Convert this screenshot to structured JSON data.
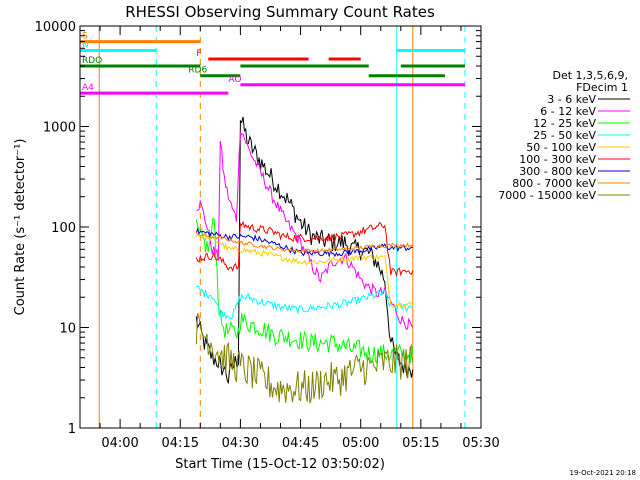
{
  "chart_data": {
    "type": "line",
    "title": "RHESSI Observing Summary Count Rates",
    "xlabel": "Start Time (15-Oct-12 03:50:02)",
    "ylabel": "Count Rate (s⁻¹ detector⁻¹)",
    "footer": "19-Oct-2021 20:18",
    "yscale": "log",
    "ylim": [
      1,
      10000
    ],
    "xlim_min": [
      0,
      100
    ],
    "x_origin": "03:50",
    "y_ticks": [
      {
        "v": 1,
        "label": "1"
      },
      {
        "v": 10,
        "label": "10"
      },
      {
        "v": 100,
        "label": "100"
      },
      {
        "v": 1000,
        "label": "1000"
      },
      {
        "v": 10000,
        "label": "10000"
      }
    ],
    "x_ticks": [
      {
        "v": 10,
        "label": "04:00"
      },
      {
        "v": 25,
        "label": "04:15"
      },
      {
        "v": 40,
        "label": "04:30"
      },
      {
        "v": 55,
        "label": "04:45"
      },
      {
        "v": 70,
        "label": "05:00"
      },
      {
        "v": 85,
        "label": "05:15"
      },
      {
        "v": 100,
        "label": "05:30"
      }
    ],
    "legend": {
      "header": [
        "Det 1,3,5,6,9,",
        "FDecim 1"
      ],
      "placement": "right"
    },
    "series": [
      {
        "name": "3 - 6 keV",
        "color": "#000000",
        "noise": 0.1,
        "x": [
          29,
          31,
          33,
          34.8,
          35,
          36.5,
          37,
          38,
          39.5,
          40,
          42,
          45,
          48,
          52,
          55,
          58,
          60,
          63,
          66,
          68,
          70,
          72,
          74,
          76,
          77.5,
          79,
          81,
          83
        ],
        "y": [
          12,
          7,
          5,
          4.5,
          4.2,
          3.5,
          3,
          4,
          5,
          1200,
          700,
          450,
          300,
          180,
          110,
          80,
          75,
          70,
          70,
          60,
          60,
          55,
          45,
          30,
          7,
          5,
          4,
          3.8
        ]
      },
      {
        "name": "6 - 12 keV",
        "color": "#ff00ff",
        "noise": 0.06,
        "x": [
          29,
          30,
          31.5,
          33,
          34.5,
          35,
          36,
          37,
          38,
          39,
          40,
          42,
          45,
          48,
          51,
          55,
          58,
          60,
          63,
          66,
          68,
          70,
          72,
          74,
          76,
          77.5,
          80,
          83
        ],
        "y": [
          160,
          170,
          110,
          60,
          50,
          700,
          300,
          200,
          150,
          120,
          1000,
          600,
          350,
          200,
          120,
          70,
          40,
          30,
          45,
          50,
          40,
          30,
          25,
          22,
          22,
          18,
          12,
          10
        ]
      },
      {
        "name": "12 - 25 keV",
        "color": "#00ff00",
        "noise": 0.1,
        "x": [
          29,
          30,
          32,
          33.5,
          34.5,
          35,
          36.5,
          38,
          39.5,
          40,
          42,
          45,
          48,
          52,
          55,
          58,
          61,
          63,
          66,
          68,
          70,
          72,
          74,
          76,
          77.5,
          80,
          83
        ],
        "y": [
          95,
          80,
          60,
          120,
          20,
          12,
          9,
          9,
          9,
          12,
          11,
          10,
          8.5,
          8,
          7.5,
          7,
          7,
          7,
          6.5,
          6,
          6,
          5.5,
          5.5,
          5.5,
          5.5,
          5.5,
          5.5
        ]
      },
      {
        "name": "25 - 50 keV",
        "color": "#00ffff",
        "noise": 0.04,
        "x": [
          29,
          31,
          33,
          35,
          38,
          40,
          42,
          45,
          50,
          55,
          60,
          65,
          68,
          70,
          72,
          74,
          76,
          77.5,
          80,
          83
        ],
        "y": [
          25,
          22,
          21,
          14,
          13,
          20,
          20,
          18,
          16,
          15,
          16,
          17,
          18,
          19,
          20,
          21,
          22,
          16,
          16,
          16
        ]
      },
      {
        "name": "50 - 100 keV",
        "color": "#ffcc00",
        "noise": 0.03,
        "x": [
          29,
          31,
          33,
          35,
          37,
          40,
          42,
          45,
          50,
          55,
          60,
          65,
          70,
          73,
          76,
          77.5,
          80,
          83
        ],
        "y": [
          85,
          80,
          75,
          70,
          60,
          60,
          58,
          55,
          50,
          45,
          45,
          48,
          50,
          50,
          50,
          17,
          17,
          17
        ]
      },
      {
        "name": "100 - 300 keV",
        "color": "#ff0000",
        "noise": 0.04,
        "x": [
          29,
          31,
          33,
          35,
          37,
          39.5,
          40,
          42,
          45,
          48,
          51,
          55,
          60,
          65,
          68,
          70,
          72,
          74,
          76,
          77.5,
          80,
          83
        ],
        "y": [
          48,
          50,
          52,
          47,
          40,
          40,
          110,
          100,
          95,
          90,
          80,
          78,
          78,
          80,
          85,
          90,
          95,
          100,
          105,
          35,
          36,
          37
        ]
      },
      {
        "name": "300 - 800 keV",
        "color": "#0000cc",
        "noise": 0.03,
        "x": [
          29,
          31,
          33,
          35,
          37,
          40,
          42,
          45,
          50,
          55,
          60,
          65,
          70,
          72,
          74,
          76,
          77.5,
          80,
          83
        ],
        "y": [
          90,
          88,
          85,
          82,
          80,
          80,
          80,
          75,
          65,
          55,
          55,
          55,
          58,
          60,
          62,
          65,
          62,
          62,
          62
        ]
      },
      {
        "name": "800 - 7000 keV",
        "color": "#ff7f00",
        "noise": 0.02,
        "x": [
          29,
          31,
          33,
          35,
          37,
          40,
          42,
          45,
          50,
          55,
          60,
          65,
          70,
          74,
          76,
          77.5,
          80,
          83
        ],
        "y": [
          85,
          82,
          80,
          78,
          75,
          70,
          68,
          65,
          60,
          58,
          58,
          60,
          62,
          65,
          65,
          66,
          66,
          66
        ]
      },
      {
        "name": "7000 - 15000 keV",
        "color": "#808000",
        "noise": 0.18,
        "x": [
          29,
          30,
          32,
          34,
          36,
          38,
          40,
          43,
          46,
          49,
          52,
          55,
          58,
          61,
          64,
          67,
          70,
          73,
          76,
          77.5,
          80,
          83
        ],
        "y": [
          10,
          9,
          8,
          6,
          5,
          4.5,
          4,
          3.5,
          3,
          2.5,
          2.5,
          2.5,
          2.5,
          3,
          3,
          3.5,
          4,
          4,
          4.5,
          4.5,
          4.5,
          4.5
        ]
      }
    ],
    "vlines": [
      {
        "x": 0,
        "color": "#00ffff",
        "dash": false
      },
      {
        "x": 4.8,
        "color": "#ff7f00",
        "dash": false
      },
      {
        "x": 19,
        "color": "#00ffff",
        "dash": true
      },
      {
        "x": 30,
        "color": "#ff7f00",
        "dash": true
      },
      {
        "x": 79,
        "color": "#00ffff",
        "dash": false
      },
      {
        "x": 83,
        "color": "#ff7f00",
        "dash": false
      },
      {
        "x": 96,
        "color": "#00ffff",
        "dash": true
      }
    ],
    "flag_bars": [
      {
        "label": "S",
        "color": "#ff7f00",
        "y": 7000,
        "segments": [
          [
            0,
            30
          ]
        ]
      },
      {
        "label": "N",
        "color": "#00ffff",
        "y": 5700,
        "segments": [
          [
            0,
            19
          ],
          [
            79,
            96
          ]
        ]
      },
      {
        "label": "F",
        "color": "#ff0000",
        "y": 4700,
        "segments": [
          [
            32,
            57
          ],
          [
            62,
            70
          ]
        ]
      },
      {
        "label": "RDO",
        "color": "#008000",
        "y": 4000,
        "segments": [
          [
            0,
            30
          ],
          [
            40,
            72
          ],
          [
            80,
            96
          ]
        ]
      },
      {
        "label": "RD6",
        "color": "#008000",
        "y": 3200,
        "segments": [
          [
            30,
            40
          ],
          [
            72,
            91
          ]
        ]
      },
      {
        "label": "AO",
        "color": "#ff00ff",
        "y": 2600,
        "segments": [
          [
            40,
            96
          ]
        ]
      },
      {
        "label": "A4",
        "color": "#ff00ff",
        "y": 2150,
        "segments": [
          [
            0,
            37
          ]
        ]
      }
    ]
  }
}
